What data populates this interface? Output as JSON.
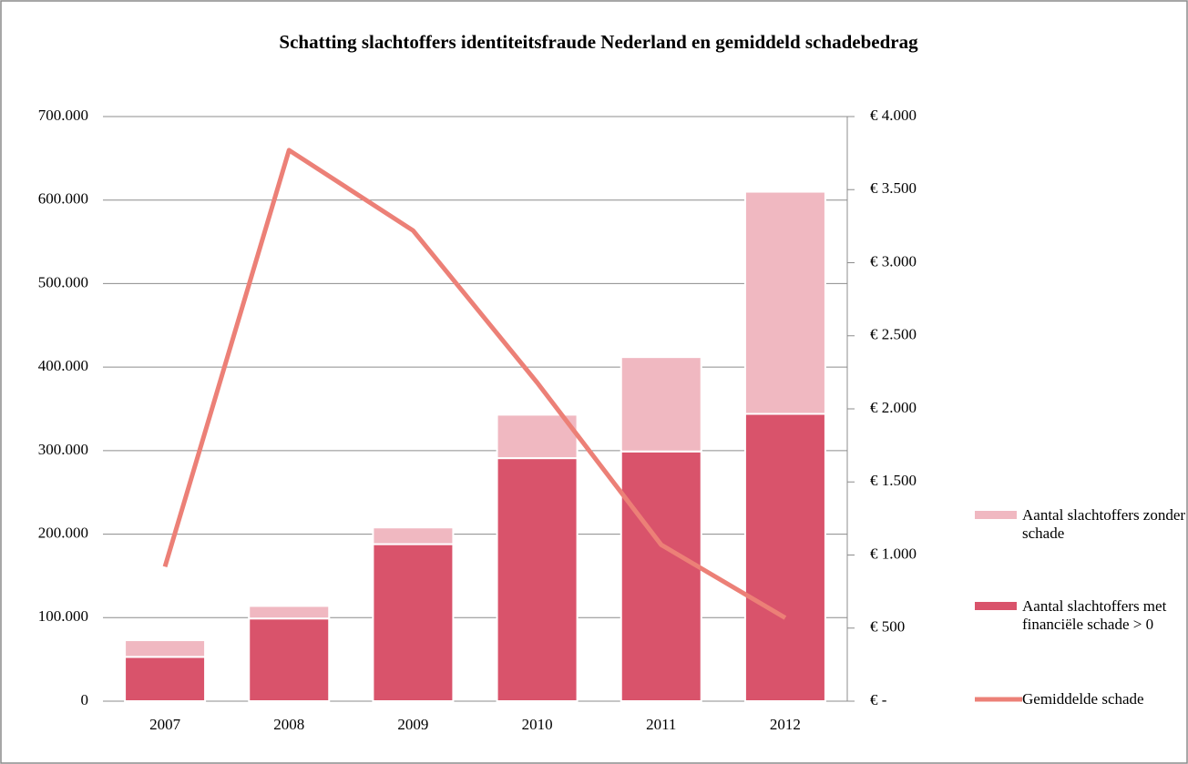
{
  "chart_data": {
    "type": "bar",
    "title": "Schatting slachtoffers identiteitsfraude Nederland en gemiddeld schadebedrag",
    "categories": [
      "2007",
      "2008",
      "2009",
      "2010",
      "2011",
      "2012"
    ],
    "series": [
      {
        "name": "Aantal slachtoffers met financiële schade > 0",
        "type": "bar",
        "color": "#d9536b",
        "values": [
          53000,
          99000,
          188000,
          291000,
          299000,
          344000
        ]
      },
      {
        "name": "Aantal slachtoffers zonder schade",
        "type": "bar",
        "color": "#f0b8c1",
        "values": [
          20000,
          15000,
          20000,
          52000,
          113000,
          266000
        ]
      },
      {
        "name": "Gemiddelde schade",
        "type": "line",
        "axis": "y2",
        "color": "#ec8077",
        "values": [
          920,
          3770,
          3220,
          2180,
          1070,
          570
        ]
      }
    ],
    "stacked": true,
    "ylim": [
      0,
      700000
    ],
    "yticks": [
      0,
      {
        "value": 100000,
        "label": "100.000"
      },
      {
        "value": 200000,
        "label": "200.000"
      },
      {
        "value": 300000,
        "label": "300.000"
      },
      {
        "value": 400000,
        "label": "400.000"
      },
      {
        "value": 500000,
        "label": "500.000"
      },
      {
        "value": 600000,
        "label": "600.000"
      },
      {
        "value": 700000,
        "label": "700.000"
      }
    ],
    "y2lim": [
      0,
      4000
    ],
    "y2ticks": [
      {
        "value": 0,
        "label": "€ -"
      },
      {
        "value": 500,
        "label": "€ 500"
      },
      {
        "value": 1000,
        "label": "€ 1.000"
      },
      {
        "value": 1500,
        "label": "€ 1.500"
      },
      {
        "value": 2000,
        "label": "€ 2.000"
      },
      {
        "value": 2500,
        "label": "€ 2.500"
      },
      {
        "value": 3000,
        "label": "€ 3.000"
      },
      {
        "value": 3500,
        "label": "€ 3.500"
      },
      {
        "value": 4000,
        "label": "€ 4.000"
      }
    ],
    "grid": true,
    "legend": "right"
  }
}
